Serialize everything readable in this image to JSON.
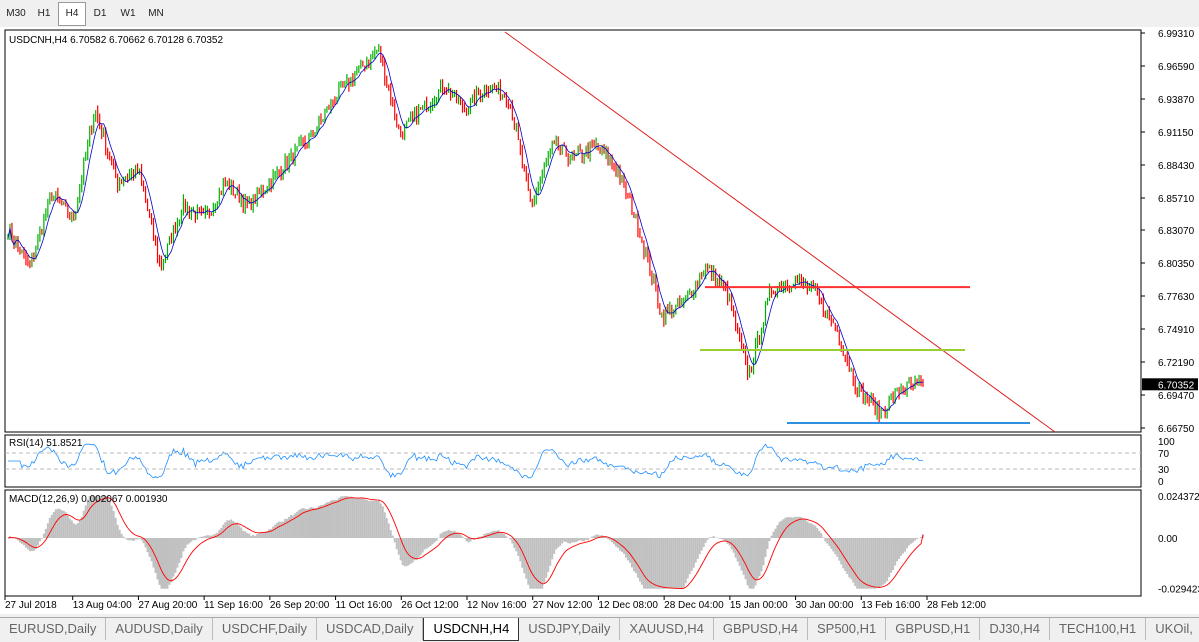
{
  "timeframes": [
    {
      "label": "M30"
    },
    {
      "label": "H1"
    },
    {
      "label": "H4",
      "active": true
    },
    {
      "label": "D1"
    },
    {
      "label": "W1"
    },
    {
      "label": "MN"
    }
  ],
  "chart": {
    "header": "USDCNH,H4  6.70582 6.70662 6.70128 6.70352",
    "symbol": "USDCNH",
    "timeframe": "H4",
    "open": 6.70582,
    "high": 6.70662,
    "low": 6.70128,
    "close": 6.70352,
    "current_price_label": "6.70352",
    "price_ticks": [
      "6.99310",
      "6.96590",
      "6.93870",
      "6.91150",
      "6.88430",
      "6.85710",
      "6.83070",
      "6.80350",
      "6.77630",
      "6.74910",
      "6.72190",
      "6.69470",
      "6.66750"
    ],
    "price_range": [
      6.6675,
      6.9931
    ],
    "bull_color": "#00b000",
    "bear_color": "#ff0000",
    "ma_color": "#0000cc",
    "price_path": [
      6.83,
      6.8,
      6.86,
      6.84,
      6.93,
      6.87,
      6.88,
      6.8,
      6.85,
      6.84,
      6.87,
      6.85,
      6.87,
      6.89,
      6.91,
      6.94,
      6.96,
      6.98,
      6.91,
      6.93,
      6.95,
      6.93,
      6.95,
      6.94,
      6.85,
      6.9,
      6.89,
      6.9,
      6.88,
      6.83,
      6.76,
      6.77,
      6.8,
      6.78,
      6.71,
      6.78,
      6.79,
      6.78,
      6.75,
      6.7,
      6.68,
      6.7,
      6.7035
    ],
    "levels": [
      {
        "price": 6.7836,
        "color": "#ff3030"
      },
      {
        "price": 6.7318,
        "color": "#9acd32"
      },
      {
        "price": 6.6716,
        "color": "#3090e0"
      }
    ],
    "trendline_color": "#e02020",
    "time_labels": [
      "27 Jul 2018",
      "13 Aug 04:00",
      "27 Aug 20:00",
      "11 Sep 16:00",
      "26 Sep 20:00",
      "11 Oct 16:00",
      "26 Oct 12:00",
      "12 Nov 16:00",
      "27 Nov 12:00",
      "12 Dec 08:00",
      "28 Dec 04:00",
      "15 Jan 00:00",
      "30 Jan 00:00",
      "13 Feb 16:00",
      "28 Feb 12:00"
    ]
  },
  "rsi": {
    "header": "RSI(14) 51.8521",
    "value": 51.8521,
    "ticks": [
      "100",
      "70",
      "30",
      "0"
    ],
    "color": "#1e90ff"
  },
  "macd": {
    "header": "MACD(12,26,9) 0.002067 0.001930",
    "main": 0.002067,
    "signal": 0.00193,
    "ticks": [
      "0.024372",
      "0.00",
      "-0.029423"
    ],
    "hist_color": "#c0c0c0",
    "signal_color": "#ff0000"
  },
  "tabs": [
    {
      "label": "EURUSD,Daily"
    },
    {
      "label": "AUDUSD,Daily"
    },
    {
      "label": "USDCHF,Daily"
    },
    {
      "label": "USDCAD,Daily"
    },
    {
      "label": "USDCNH,H4",
      "active": true
    },
    {
      "label": "USDJPY,Daily"
    },
    {
      "label": "XAUUSD,H4"
    },
    {
      "label": "GBPUSD,H4"
    },
    {
      "label": "SP500,H1"
    },
    {
      "label": "GBPUSD,H1"
    },
    {
      "label": "DJ30,H4"
    },
    {
      "label": "TECH100,H1"
    },
    {
      "label": "UKOil,"
    }
  ]
}
